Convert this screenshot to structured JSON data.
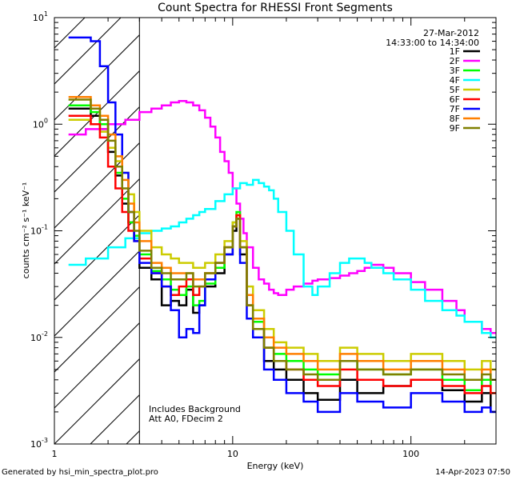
{
  "chart_data": {
    "type": "line",
    "title": "Count Spectra for RHESSI Front Segments",
    "xlabel": "Energy (keV)",
    "ylabel": "counts cm⁻² s⁻¹ keV⁻¹",
    "xscale": "log",
    "yscale": "log",
    "xlim": [
      1,
      300
    ],
    "ylim": [
      0.001,
      10
    ],
    "x_ticks": [
      {
        "value": 1,
        "label": "1"
      },
      {
        "value": 10,
        "label": "10"
      },
      {
        "value": 100,
        "label": "100"
      }
    ],
    "y_ticks": [
      {
        "value": 0.001,
        "base": "10",
        "exp": "-3"
      },
      {
        "value": 0.01,
        "base": "10",
        "exp": "-2"
      },
      {
        "value": 0.1,
        "base": "10",
        "exp": "-1"
      },
      {
        "value": 1,
        "base": "10",
        "exp": "0"
      },
      {
        "value": 10,
        "base": "10",
        "exp": "1"
      }
    ],
    "date": "27-Mar-2012",
    "time_range": "14:33:00 to 14:34:00",
    "annotations": [
      "Includes Background",
      "Att A0, FDecim 2"
    ],
    "hatched_region_below_keV": 3,
    "series": [
      {
        "name": "1F",
        "color": "#000000",
        "x": [
          1.2,
          1.4,
          1.6,
          1.8,
          2.0,
          2.2,
          2.4,
          2.6,
          2.8,
          3.0,
          3.5,
          4,
          4.5,
          5,
          5.5,
          6,
          6.5,
          7,
          8,
          9,
          10,
          10.5,
          11,
          12,
          13,
          15,
          17,
          20,
          25,
          30,
          40,
          50,
          70,
          100,
          150,
          200,
          250,
          280
        ],
        "y": [
          1.4,
          1.4,
          1.2,
          0.9,
          0.55,
          0.33,
          0.18,
          0.12,
          0.085,
          0.045,
          0.035,
          0.02,
          0.022,
          0.02,
          0.028,
          0.017,
          0.02,
          0.03,
          0.04,
          0.06,
          0.1,
          0.13,
          0.06,
          0.02,
          0.012,
          0.006,
          0.005,
          0.004,
          0.003,
          0.0026,
          0.004,
          0.003,
          0.0035,
          0.004,
          0.0032,
          0.0025,
          0.003,
          0.002
        ]
      },
      {
        "name": "2F",
        "color": "#ff00ff",
        "x": [
          1.2,
          1.5,
          2,
          2.5,
          3,
          3.5,
          4,
          4.5,
          5,
          5.5,
          6,
          6.5,
          7,
          7.5,
          8,
          8.5,
          9,
          9.5,
          10,
          10.5,
          11,
          11.5,
          12,
          13,
          14,
          15,
          16,
          17,
          18,
          20,
          22,
          25,
          28,
          30,
          35,
          40,
          45,
          50,
          55,
          60,
          70,
          80,
          100,
          120,
          150,
          180,
          200,
          250,
          280
        ],
        "y": [
          0.8,
          0.9,
          1.0,
          1.1,
          1.3,
          1.4,
          1.5,
          1.6,
          1.65,
          1.6,
          1.5,
          1.35,
          1.15,
          0.95,
          0.75,
          0.55,
          0.45,
          0.35,
          0.25,
          0.18,
          0.13,
          0.095,
          0.07,
          0.045,
          0.035,
          0.032,
          0.028,
          0.026,
          0.025,
          0.028,
          0.03,
          0.032,
          0.034,
          0.035,
          0.036,
          0.038,
          0.04,
          0.042,
          0.045,
          0.048,
          0.045,
          0.04,
          0.033,
          0.028,
          0.022,
          0.018,
          0.014,
          0.012,
          0.011
        ]
      },
      {
        "name": "3F",
        "color": "#00ff00",
        "x": [
          1.2,
          1.4,
          1.6,
          1.8,
          2.0,
          2.2,
          2.4,
          2.6,
          2.8,
          3.0,
          3.5,
          4,
          4.5,
          5,
          5.5,
          6,
          6.5,
          7,
          8,
          9,
          10,
          10.5,
          11,
          12,
          13,
          15,
          17,
          20,
          25,
          30,
          40,
          50,
          70,
          100,
          150,
          200,
          250,
          280
        ],
        "y": [
          1.5,
          1.5,
          1.3,
          1.0,
          0.6,
          0.35,
          0.2,
          0.12,
          0.09,
          0.06,
          0.042,
          0.035,
          0.028,
          0.025,
          0.03,
          0.02,
          0.022,
          0.032,
          0.045,
          0.07,
          0.12,
          0.15,
          0.07,
          0.025,
          0.014,
          0.008,
          0.007,
          0.006,
          0.005,
          0.0045,
          0.006,
          0.005,
          0.0045,
          0.005,
          0.004,
          0.0032,
          0.004,
          0.003
        ]
      },
      {
        "name": "4F",
        "color": "#00ffff",
        "x": [
          1.2,
          1.5,
          2,
          2.5,
          3,
          3.5,
          4,
          4.5,
          5,
          5.5,
          6,
          6.5,
          7,
          8,
          9,
          10,
          11,
          12,
          13,
          14,
          15,
          16,
          17,
          18,
          20,
          22,
          25,
          28,
          30,
          35,
          40,
          45,
          50,
          55,
          60,
          70,
          80,
          100,
          120,
          150,
          180,
          200,
          250,
          280
        ],
        "y": [
          0.048,
          0.055,
          0.07,
          0.085,
          0.095,
          0.1,
          0.105,
          0.11,
          0.12,
          0.13,
          0.14,
          0.15,
          0.16,
          0.19,
          0.22,
          0.25,
          0.28,
          0.27,
          0.3,
          0.28,
          0.26,
          0.24,
          0.2,
          0.15,
          0.1,
          0.06,
          0.03,
          0.025,
          0.03,
          0.04,
          0.05,
          0.055,
          0.055,
          0.05,
          0.045,
          0.04,
          0.035,
          0.028,
          0.022,
          0.018,
          0.016,
          0.014,
          0.011,
          0.01
        ]
      },
      {
        "name": "5F",
        "color": "#cccc00",
        "x": [
          1.2,
          1.4,
          1.6,
          1.8,
          2.0,
          2.2,
          2.4,
          2.6,
          2.8,
          3.0,
          3.5,
          4,
          4.5,
          5,
          5.5,
          6,
          6.5,
          7,
          8,
          9,
          10,
          10.5,
          11,
          12,
          13,
          15,
          17,
          20,
          25,
          30,
          40,
          50,
          70,
          100,
          150,
          200,
          250,
          280
        ],
        "y": [
          1.1,
          1.1,
          1.0,
          0.85,
          0.6,
          0.45,
          0.35,
          0.22,
          0.15,
          0.1,
          0.07,
          0.06,
          0.055,
          0.05,
          0.05,
          0.045,
          0.045,
          0.05,
          0.06,
          0.08,
          0.12,
          0.14,
          0.08,
          0.03,
          0.018,
          0.012,
          0.009,
          0.008,
          0.007,
          0.006,
          0.008,
          0.007,
          0.006,
          0.007,
          0.006,
          0.005,
          0.006,
          0.005
        ]
      },
      {
        "name": "6F",
        "color": "#ff0000",
        "x": [
          1.2,
          1.4,
          1.6,
          1.8,
          2.0,
          2.2,
          2.4,
          2.6,
          2.8,
          3.0,
          3.5,
          4,
          4.5,
          5,
          5.5,
          6,
          6.5,
          7,
          8,
          9,
          10,
          10.5,
          11,
          12,
          13,
          15,
          17,
          20,
          25,
          30,
          40,
          50,
          70,
          100,
          150,
          200,
          250,
          280
        ],
        "y": [
          1.2,
          1.2,
          1.0,
          0.75,
          0.4,
          0.25,
          0.15,
          0.1,
          0.08,
          0.055,
          0.04,
          0.03,
          0.025,
          0.03,
          0.035,
          0.025,
          0.03,
          0.04,
          0.05,
          0.07,
          0.11,
          0.14,
          0.07,
          0.02,
          0.012,
          0.008,
          0.006,
          0.005,
          0.004,
          0.0035,
          0.005,
          0.004,
          0.0035,
          0.004,
          0.0035,
          0.003,
          0.0035,
          0.003
        ]
      },
      {
        "name": "7F",
        "color": "#0000ff",
        "x": [
          1.2,
          1.4,
          1.6,
          1.8,
          2.0,
          2.2,
          2.4,
          2.6,
          2.8,
          3.0,
          3.5,
          4,
          4.5,
          5,
          5.5,
          6,
          6.5,
          7,
          8,
          9,
          10,
          10.5,
          11,
          12,
          13,
          15,
          17,
          20,
          25,
          30,
          40,
          50,
          70,
          100,
          150,
          200,
          250,
          280
        ],
        "y": [
          6.5,
          6.5,
          6.0,
          3.5,
          1.6,
          0.8,
          0.35,
          0.15,
          0.08,
          0.05,
          0.04,
          0.03,
          0.018,
          0.01,
          0.012,
          0.011,
          0.02,
          0.035,
          0.05,
          0.06,
          0.11,
          0.13,
          0.05,
          0.015,
          0.01,
          0.005,
          0.004,
          0.003,
          0.0025,
          0.002,
          0.003,
          0.0025,
          0.0022,
          0.003,
          0.0025,
          0.002,
          0.0022,
          0.002
        ]
      },
      {
        "name": "8F",
        "color": "#ff7f00",
        "x": [
          1.2,
          1.4,
          1.6,
          1.8,
          2.0,
          2.2,
          2.4,
          2.6,
          2.8,
          3.0,
          3.5,
          4,
          4.5,
          5,
          5.5,
          6,
          6.5,
          7,
          8,
          9,
          10,
          10.5,
          11,
          12,
          13,
          15,
          17,
          20,
          25,
          30,
          40,
          50,
          70,
          100,
          150,
          200,
          250,
          280
        ],
        "y": [
          1.8,
          1.8,
          1.5,
          1.2,
          0.8,
          0.5,
          0.3,
          0.18,
          0.12,
          0.08,
          0.05,
          0.045,
          0.04,
          0.04,
          0.04,
          0.035,
          0.035,
          0.04,
          0.05,
          0.07,
          0.11,
          0.13,
          0.07,
          0.025,
          0.015,
          0.01,
          0.008,
          0.007,
          0.006,
          0.005,
          0.007,
          0.006,
          0.005,
          0.006,
          0.005,
          0.004,
          0.005,
          0.004
        ]
      },
      {
        "name": "9F",
        "color": "#808000",
        "x": [
          1.2,
          1.4,
          1.6,
          1.8,
          2.0,
          2.2,
          2.4,
          2.6,
          2.8,
          3.0,
          3.5,
          4,
          4.5,
          5,
          5.5,
          6,
          6.5,
          7,
          8,
          9,
          10,
          10.5,
          11,
          12,
          13,
          15,
          17,
          20,
          25,
          30,
          40,
          50,
          70,
          100,
          150,
          200,
          250,
          280
        ],
        "y": [
          1.7,
          1.7,
          1.4,
          1.1,
          0.7,
          0.4,
          0.25,
          0.15,
          0.1,
          0.065,
          0.045,
          0.04,
          0.035,
          0.035,
          0.04,
          0.03,
          0.03,
          0.04,
          0.05,
          0.07,
          0.11,
          0.13,
          0.07,
          0.02,
          0.012,
          0.008,
          0.006,
          0.005,
          0.0045,
          0.004,
          0.006,
          0.005,
          0.0045,
          0.005,
          0.0045,
          0.004,
          0.0045,
          0.004
        ]
      }
    ]
  },
  "footer": {
    "generated_by": "Generated by hsi_min_spectra_plot.pro",
    "timestamp": "14-Apr-2023 07:50"
  }
}
